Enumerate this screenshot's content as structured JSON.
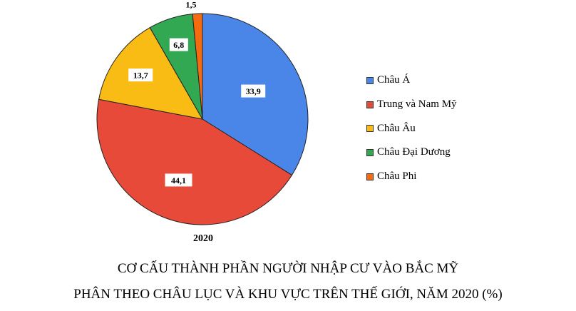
{
  "chart_data": {
    "type": "pie",
    "categories": [
      "Châu Á",
      "Trung và Nam Mỹ",
      "Châu Âu",
      "Châu Đại Dương",
      "Châu Phi"
    ],
    "values": [
      33.9,
      44.1,
      13.7,
      6.8,
      1.5
    ],
    "value_labels": [
      "33,9",
      "44,1",
      "13,7",
      "6,8",
      "1,5"
    ],
    "colors": [
      "#4a86e8",
      "#e84a3a",
      "#f9bc15",
      "#33a853",
      "#f76b10"
    ],
    "start_angle_deg": 0,
    "direction": "clockwise",
    "legend_position": "right",
    "year_label": "2020",
    "title_line1": "CƠ CẤU THÀNH PHẦN NGƯỜI NHẬP CƯ VÀO BẮC MỸ",
    "title_line2": "PHÂN THEO CHÂU LỤC VÀ KHU VỰC TRÊN THẾ GIỚI, NĂM 2020 (%)"
  }
}
